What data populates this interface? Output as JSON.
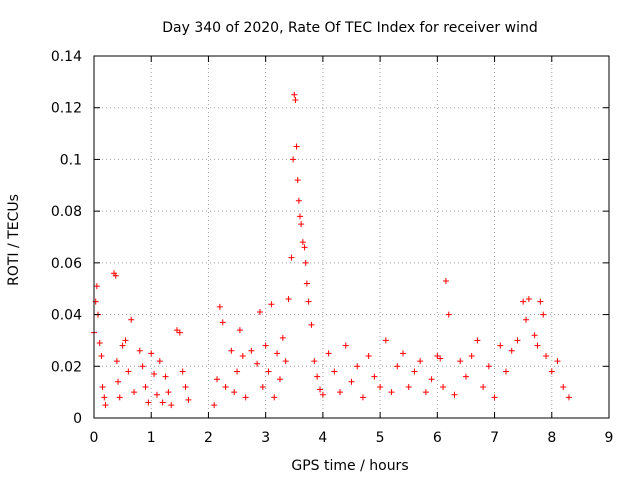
{
  "chart_data": {
    "type": "scatter",
    "title": "Day 340 of 2020, Rate Of TEC Index for receiver wind",
    "xlabel": "GPS time / hours",
    "ylabel": "ROTI / TECUs",
    "xlim": [
      0,
      9
    ],
    "ylim": [
      0,
      0.14
    ],
    "xticks": [
      "0",
      "1",
      "2",
      "3",
      "4",
      "5",
      "6",
      "7",
      "8",
      "9"
    ],
    "yticks": [
      "0",
      "0.02",
      "0.04",
      "0.06",
      "0.08",
      "0.1",
      "0.12",
      "0.14"
    ],
    "grid": true,
    "marker": "+",
    "color": "#ff0000",
    "series": [
      {
        "name": "ROTI",
        "x": [
          0.0,
          0.03,
          0.05,
          0.07,
          0.1,
          0.13,
          0.15,
          0.18,
          0.2,
          0.35,
          0.38,
          0.4,
          0.42,
          0.45,
          0.5,
          0.55,
          0.6,
          0.65,
          0.7,
          0.8,
          0.85,
          0.9,
          0.95,
          1.0,
          1.05,
          1.1,
          1.15,
          1.2,
          1.25,
          1.3,
          1.35,
          1.45,
          1.5,
          1.55,
          1.6,
          1.65,
          2.1,
          2.15,
          2.2,
          2.25,
          2.3,
          2.4,
          2.45,
          2.5,
          2.55,
          2.6,
          2.65,
          2.75,
          2.85,
          2.9,
          2.95,
          3.0,
          3.05,
          3.1,
          3.15,
          3.2,
          3.25,
          3.3,
          3.35,
          3.4,
          3.45,
          3.48,
          3.5,
          3.52,
          3.54,
          3.56,
          3.58,
          3.6,
          3.62,
          3.65,
          3.68,
          3.7,
          3.72,
          3.75,
          3.8,
          3.85,
          3.9,
          3.95,
          4.0,
          4.1,
          4.2,
          4.3,
          4.4,
          4.5,
          4.6,
          4.7,
          4.8,
          4.9,
          5.0,
          5.1,
          5.2,
          5.3,
          5.4,
          5.5,
          5.6,
          5.7,
          5.8,
          5.9,
          6.0,
          6.05,
          6.1,
          6.15,
          6.2,
          6.3,
          6.4,
          6.5,
          6.6,
          6.7,
          6.8,
          6.9,
          7.0,
          7.1,
          7.2,
          7.3,
          7.4,
          7.5,
          7.55,
          7.6,
          7.7,
          7.75,
          7.8,
          7.85,
          7.9,
          8.0,
          8.1,
          8.2,
          8.3
        ],
        "y": [
          0.033,
          0.045,
          0.051,
          0.04,
          0.029,
          0.024,
          0.012,
          0.008,
          0.005,
          0.056,
          0.055,
          0.022,
          0.014,
          0.008,
          0.028,
          0.03,
          0.018,
          0.038,
          0.01,
          0.026,
          0.02,
          0.012,
          0.006,
          0.025,
          0.017,
          0.009,
          0.022,
          0.006,
          0.016,
          0.01,
          0.005,
          0.034,
          0.033,
          0.018,
          0.012,
          0.007,
          0.005,
          0.015,
          0.043,
          0.037,
          0.012,
          0.026,
          0.01,
          0.018,
          0.034,
          0.024,
          0.008,
          0.026,
          0.021,
          0.041,
          0.012,
          0.028,
          0.018,
          0.044,
          0.008,
          0.025,
          0.015,
          0.031,
          0.022,
          0.046,
          0.062,
          0.1,
          0.125,
          0.123,
          0.105,
          0.092,
          0.084,
          0.078,
          0.075,
          0.068,
          0.066,
          0.06,
          0.052,
          0.045,
          0.036,
          0.022,
          0.016,
          0.011,
          0.009,
          0.025,
          0.018,
          0.01,
          0.028,
          0.014,
          0.02,
          0.008,
          0.024,
          0.016,
          0.012,
          0.03,
          0.01,
          0.02,
          0.025,
          0.012,
          0.018,
          0.022,
          0.01,
          0.015,
          0.024,
          0.023,
          0.012,
          0.053,
          0.04,
          0.009,
          0.022,
          0.016,
          0.024,
          0.03,
          0.012,
          0.02,
          0.008,
          0.028,
          0.018,
          0.026,
          0.03,
          0.045,
          0.038,
          0.046,
          0.032,
          0.028,
          0.045,
          0.04,
          0.024,
          0.018,
          0.022,
          0.012,
          0.008
        ]
      }
    ]
  }
}
